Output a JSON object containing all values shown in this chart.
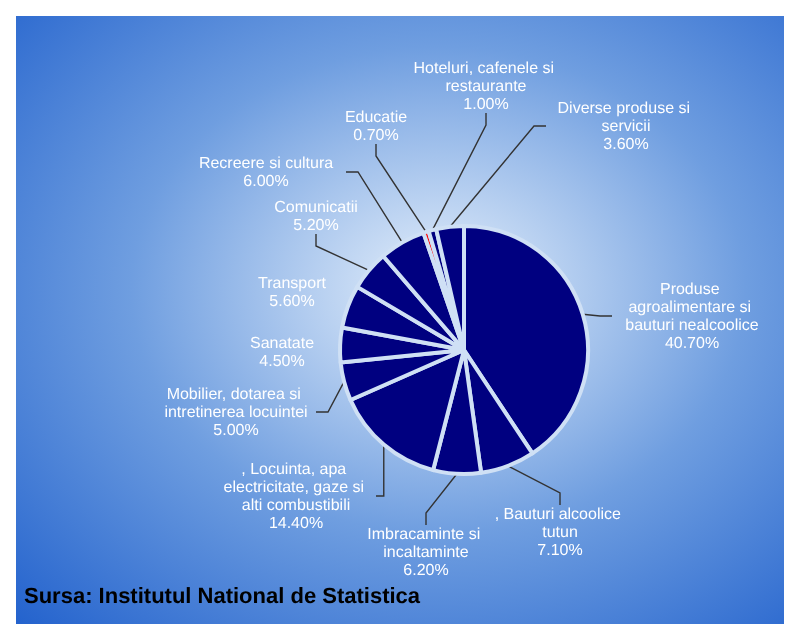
{
  "chart_data": {
    "type": "pie",
    "categories": [
      "Produse agroalimentare si bauturi nealcoolice",
      ", Bauturi alcoolice tutun",
      "Imbracaminte si incaltaminte",
      ", Locuinta, apa electricitate, gaze si alti combustibili",
      "Mobilier, dotarea si intretinerea locuintei",
      "Sanatate",
      "Transport",
      "Comunicatii",
      "Recreere si cultura",
      "Educatie",
      "Hoteluri, cafenele si restaurante",
      "Diverse produse si servicii"
    ],
    "values": [
      40.7,
      7.1,
      6.2,
      14.4,
      5.0,
      4.5,
      5.6,
      5.2,
      6.0,
      0.7,
      1.0,
      3.6
    ],
    "value_labels": [
      "40.70%",
      "7.10%",
      "6.20%",
      "14.40%",
      "5.00%",
      "4.50%",
      "5.60%",
      "5.20%",
      "6.00%",
      "0.70%",
      "1.00%",
      "3.60%"
    ],
    "colors": [
      "#000080",
      "#000080",
      "#000080",
      "#000080",
      "#000080",
      "#000080",
      "#000080",
      "#000080",
      "#000080",
      "#ff0000",
      "#000080",
      "#000080"
    ],
    "annotations": [
      "Sursa: Institutul National de Statistica"
    ],
    "legend": false
  }
}
